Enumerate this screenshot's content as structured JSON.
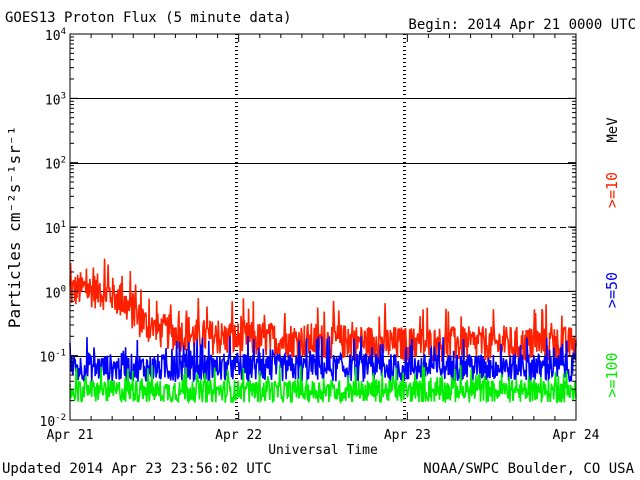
{
  "header": {
    "title": "GOES13 Proton Flux (5 minute data)",
    "begin": "Begin: 2014 Apr 21 0000 UTC"
  },
  "footer": {
    "updated": "Updated 2014 Apr 23 23:56:02 UTC",
    "credit": "NOAA/SWPC Boulder, CO USA"
  },
  "chart_data": {
    "type": "line",
    "title": "GOES13 Proton Flux (5 minute data)",
    "xlabel": "Universal Time",
    "ylabel": "Particles cm⁻²s⁻¹sr⁻¹",
    "y_scale": "log",
    "ylim": [
      0.01,
      10000
    ],
    "y_ticks": [
      {
        "base": "10",
        "exp": "-2",
        "value": 0.01
      },
      {
        "base": "10",
        "exp": "-1",
        "value": 0.1
      },
      {
        "base": "10",
        "exp": "0",
        "value": 1
      },
      {
        "base": "10",
        "exp": "1",
        "value": 10
      },
      {
        "base": "10",
        "exp": "2",
        "value": 100
      },
      {
        "base": "10",
        "exp": "3",
        "value": 1000
      },
      {
        "base": "10",
        "exp": "4",
        "value": 10000
      }
    ],
    "x_ticks": [
      "Apr 21",
      "Apr 22",
      "Apr 23",
      "Apr 24"
    ],
    "xlim": [
      "2014-04-21T00:00Z",
      "2014-04-24T00:00Z"
    ],
    "units_label": "MeV",
    "thresholds": [
      {
        "value": 10,
        "style": "dashed"
      },
      {
        "value": 1,
        "style": "solid"
      },
      {
        "value": 100,
        "style": "solid"
      },
      {
        "value": 1000,
        "style": "solid"
      },
      {
        "value": 0.1,
        "style": "solid"
      }
    ],
    "series": [
      {
        "name": ">=10",
        "color": "#ff2000",
        "times": [
          "2014-04-21T00:00Z",
          "2014-04-21T02:00Z",
          "2014-04-21T04:00Z",
          "2014-04-21T06:00Z",
          "2014-04-21T08:00Z",
          "2014-04-21T10:00Z",
          "2014-04-21T12:00Z",
          "2014-04-21T18:00Z",
          "2014-04-22T00:00Z",
          "2014-04-22T12:00Z",
          "2014-04-23T00:00Z",
          "2014-04-23T12:00Z",
          "2014-04-24T00:00Z"
        ],
        "values": [
          1.0,
          1.1,
          1.0,
          0.9,
          0.6,
          0.35,
          0.25,
          0.2,
          0.18,
          0.17,
          0.15,
          0.15,
          0.15
        ]
      },
      {
        "name": ">=50",
        "color": "#0000ff",
        "times": [
          "2014-04-21T00:00Z",
          "2014-04-21T12:00Z",
          "2014-04-22T00:00Z",
          "2014-04-22T12:00Z",
          "2014-04-23T00:00Z",
          "2014-04-23T12:00Z",
          "2014-04-24T00:00Z"
        ],
        "values": [
          0.065,
          0.065,
          0.065,
          0.065,
          0.065,
          0.065,
          0.065
        ]
      },
      {
        "name": ">=100",
        "color": "#00ee00",
        "times": [
          "2014-04-21T00:00Z",
          "2014-04-21T12:00Z",
          "2014-04-22T00:00Z",
          "2014-04-22T12:00Z",
          "2014-04-23T00:00Z",
          "2014-04-23T12:00Z",
          "2014-04-24T00:00Z"
        ],
        "values": [
          0.028,
          0.028,
          0.028,
          0.028,
          0.028,
          0.028,
          0.028
        ]
      }
    ]
  }
}
